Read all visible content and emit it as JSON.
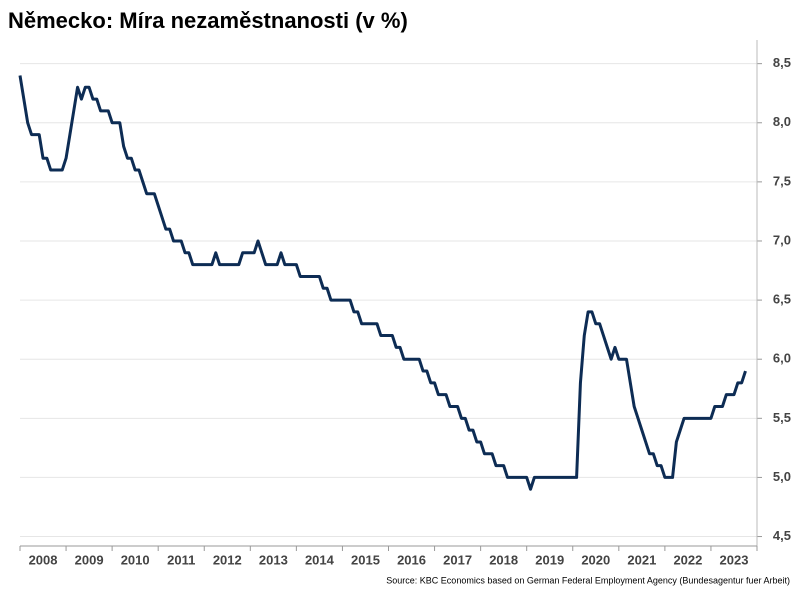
{
  "chart_data": {
    "type": "line",
    "title": "Německo: Míra nezaměstnanosti (v %)",
    "source": "Source: KBC Economics based on German Federal Employment Agency (Bundesagentur fuer Arbeit)",
    "categories": [
      "2008",
      null,
      null,
      null,
      null,
      null,
      null,
      null,
      null,
      null,
      null,
      null,
      "2009",
      null,
      null,
      null,
      null,
      null,
      null,
      null,
      null,
      null,
      null,
      null,
      "2010",
      null,
      null,
      null,
      null,
      null,
      null,
      null,
      null,
      null,
      null,
      null,
      "2011",
      null,
      null,
      null,
      null,
      null,
      null,
      null,
      null,
      null,
      null,
      null,
      "2012",
      null,
      null,
      null,
      null,
      null,
      null,
      null,
      null,
      null,
      null,
      null,
      "2013",
      null,
      null,
      null,
      null,
      null,
      null,
      null,
      null,
      null,
      null,
      null,
      "2014",
      null,
      null,
      null,
      null,
      null,
      null,
      null,
      null,
      null,
      null,
      null,
      "2015",
      null,
      null,
      null,
      null,
      null,
      null,
      null,
      null,
      null,
      null,
      null,
      "2016",
      null,
      null,
      null,
      null,
      null,
      null,
      null,
      null,
      null,
      null,
      null,
      "2017",
      null,
      null,
      null,
      null,
      null,
      null,
      null,
      null,
      null,
      null,
      null,
      "2018",
      null,
      null,
      null,
      null,
      null,
      null,
      null,
      null,
      null,
      null,
      null,
      "2019",
      null,
      null,
      null,
      null,
      null,
      null,
      null,
      null,
      null,
      null,
      null,
      "2020",
      null,
      null,
      null,
      null,
      null,
      null,
      null,
      null,
      null,
      null,
      null,
      "2021",
      null,
      null,
      null,
      null,
      null,
      null,
      null,
      null,
      null,
      null,
      null,
      "2022",
      null,
      null,
      null,
      null,
      null,
      null,
      null,
      null,
      null,
      null,
      null,
      "2023",
      null,
      null,
      null,
      null,
      null,
      null,
      null,
      null,
      null
    ],
    "series": [
      {
        "name": "Míra nezaměstnanosti",
        "color": "#0d2c54",
        "values": [
          8.4,
          8.2,
          8.0,
          7.9,
          7.9,
          7.9,
          7.7,
          7.7,
          7.6,
          7.6,
          7.6,
          7.6,
          7.7,
          7.9,
          8.1,
          8.3,
          8.2,
          8.3,
          8.3,
          8.2,
          8.2,
          8.1,
          8.1,
          8.1,
          8.0,
          8.0,
          8.0,
          7.8,
          7.7,
          7.7,
          7.6,
          7.6,
          7.5,
          7.4,
          7.4,
          7.4,
          7.3,
          7.2,
          7.1,
          7.1,
          7.0,
          7.0,
          7.0,
          6.9,
          6.9,
          6.8,
          6.8,
          6.8,
          6.8,
          6.8,
          6.8,
          6.9,
          6.8,
          6.8,
          6.8,
          6.8,
          6.8,
          6.8,
          6.9,
          6.9,
          6.9,
          6.9,
          7.0,
          6.9,
          6.8,
          6.8,
          6.8,
          6.8,
          6.9,
          6.8,
          6.8,
          6.8,
          6.8,
          6.7,
          6.7,
          6.7,
          6.7,
          6.7,
          6.7,
          6.6,
          6.6,
          6.5,
          6.5,
          6.5,
          6.5,
          6.5,
          6.5,
          6.4,
          6.4,
          6.3,
          6.3,
          6.3,
          6.3,
          6.3,
          6.2,
          6.2,
          6.2,
          6.2,
          6.1,
          6.1,
          6.0,
          6.0,
          6.0,
          6.0,
          6.0,
          5.9,
          5.9,
          5.8,
          5.8,
          5.7,
          5.7,
          5.7,
          5.6,
          5.6,
          5.6,
          5.5,
          5.5,
          5.4,
          5.4,
          5.3,
          5.3,
          5.2,
          5.2,
          5.2,
          5.1,
          5.1,
          5.1,
          5.0,
          5.0,
          5.0,
          5.0,
          5.0,
          5.0,
          4.9,
          5.0,
          5.0,
          5.0,
          5.0,
          5.0,
          5.0,
          5.0,
          5.0,
          5.0,
          5.0,
          5.0,
          5.0,
          5.8,
          6.2,
          6.4,
          6.4,
          6.3,
          6.3,
          6.2,
          6.1,
          6.0,
          6.1,
          6.0,
          6.0,
          6.0,
          5.8,
          5.6,
          5.5,
          5.4,
          5.3,
          5.2,
          5.2,
          5.1,
          5.1,
          5.0,
          5.0,
          5.0,
          5.3,
          5.4,
          5.5,
          5.5,
          5.5,
          5.5,
          5.5,
          5.5,
          5.5,
          5.5,
          5.6,
          5.6,
          5.6,
          5.7,
          5.7,
          5.7,
          5.8,
          5.8,
          5.9
        ]
      }
    ],
    "ylim": [
      4.42,
      8.7
    ],
    "yticks": [
      {
        "value": 4.5,
        "label": "4,5"
      },
      {
        "value": 5,
        "label": "5,0"
      },
      {
        "value": 5.5,
        "label": "5,5"
      },
      {
        "value": 6,
        "label": "6,0"
      },
      {
        "value": 6.5,
        "label": "6,5"
      },
      {
        "value": 7,
        "label": "7,0"
      },
      {
        "value": 7.5,
        "label": "7,5"
      },
      {
        "value": 8,
        "label": "8,0"
      },
      {
        "value": 8.5,
        "label": "8,5"
      }
    ],
    "grid": true
  }
}
